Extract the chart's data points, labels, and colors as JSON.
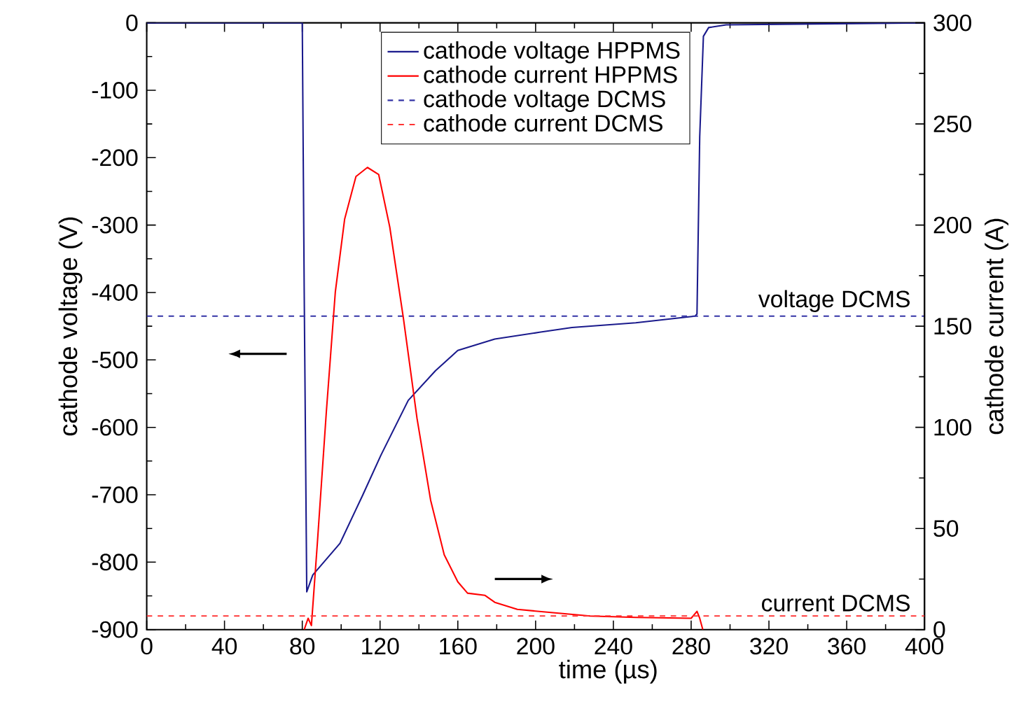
{
  "chart_data": {
    "type": "line",
    "xlabel": "time (µs)",
    "ylabel": "cathode voltage (V)",
    "y2label": "cathode current (A)",
    "xlim": [
      0,
      400
    ],
    "xticks": [
      0,
      40,
      80,
      120,
      160,
      200,
      240,
      280,
      320,
      360,
      400
    ],
    "ylim": [
      -900,
      0
    ],
    "yticks": [
      -900,
      -800,
      -700,
      -600,
      -500,
      -400,
      -300,
      -200,
      -100,
      0
    ],
    "y2lim": [
      0,
      300
    ],
    "y2ticks": [
      0,
      50,
      100,
      150,
      200,
      250,
      300
    ],
    "legend": "top",
    "grid": false,
    "series": [
      {
        "name": "cathode voltage HPPMS",
        "color": "#1a1a8c",
        "line_style": "solid",
        "x": [
          0,
          80,
          81,
          82.3,
          85.4,
          99.4,
          111,
          120.5,
          134.5,
          148.5,
          160,
          179,
          202,
          218.7,
          251.5,
          282,
          283,
          284.4,
          286.3,
          289,
          298,
          400
        ],
        "values": [
          0,
          0,
          -400,
          -844,
          -819,
          -772,
          -701,
          -641,
          -560,
          -516,
          -486,
          -469,
          -459,
          -452,
          -445,
          -435,
          -432,
          -169,
          -20,
          -7,
          -3,
          0
        ]
      },
      {
        "name": "cathode current HPPMS",
        "color": "#ff0000",
        "line_style": "solid",
        "axis": "y2",
        "x": [
          81,
          83,
          84.7,
          87.7,
          92.4,
          97,
          101.8,
          107.6,
          113.5,
          119.3,
          125,
          132,
          139,
          146,
          153,
          160,
          165,
          174,
          179,
          190.6,
          214,
          228,
          251.5,
          280,
          283,
          284.4,
          286
        ],
        "values": [
          0,
          5.6,
          2,
          42,
          108,
          167,
          203,
          224,
          228.5,
          225,
          199,
          154,
          104.5,
          64,
          37,
          23.6,
          18,
          16.9,
          13.5,
          10,
          7.9,
          6.7,
          6,
          5.6,
          9,
          5.6,
          0
        ]
      },
      {
        "name": "cathode voltage DCMS",
        "color": "#3333a6",
        "line_style": "dashed",
        "x": [
          0,
          400
        ],
        "values": [
          -435,
          -435
        ]
      },
      {
        "name": "cathode current DCMS",
        "color": "#ff3333",
        "line_style": "dashed",
        "axis": "y2",
        "x": [
          0,
          400
        ],
        "values": [
          6.7,
          6.7
        ]
      }
    ],
    "annotations": [
      {
        "text": "voltage DCMS",
        "x": 395,
        "y": -435
      },
      {
        "text": "current DCMS",
        "x": 395,
        "y": -879
      }
    ]
  }
}
